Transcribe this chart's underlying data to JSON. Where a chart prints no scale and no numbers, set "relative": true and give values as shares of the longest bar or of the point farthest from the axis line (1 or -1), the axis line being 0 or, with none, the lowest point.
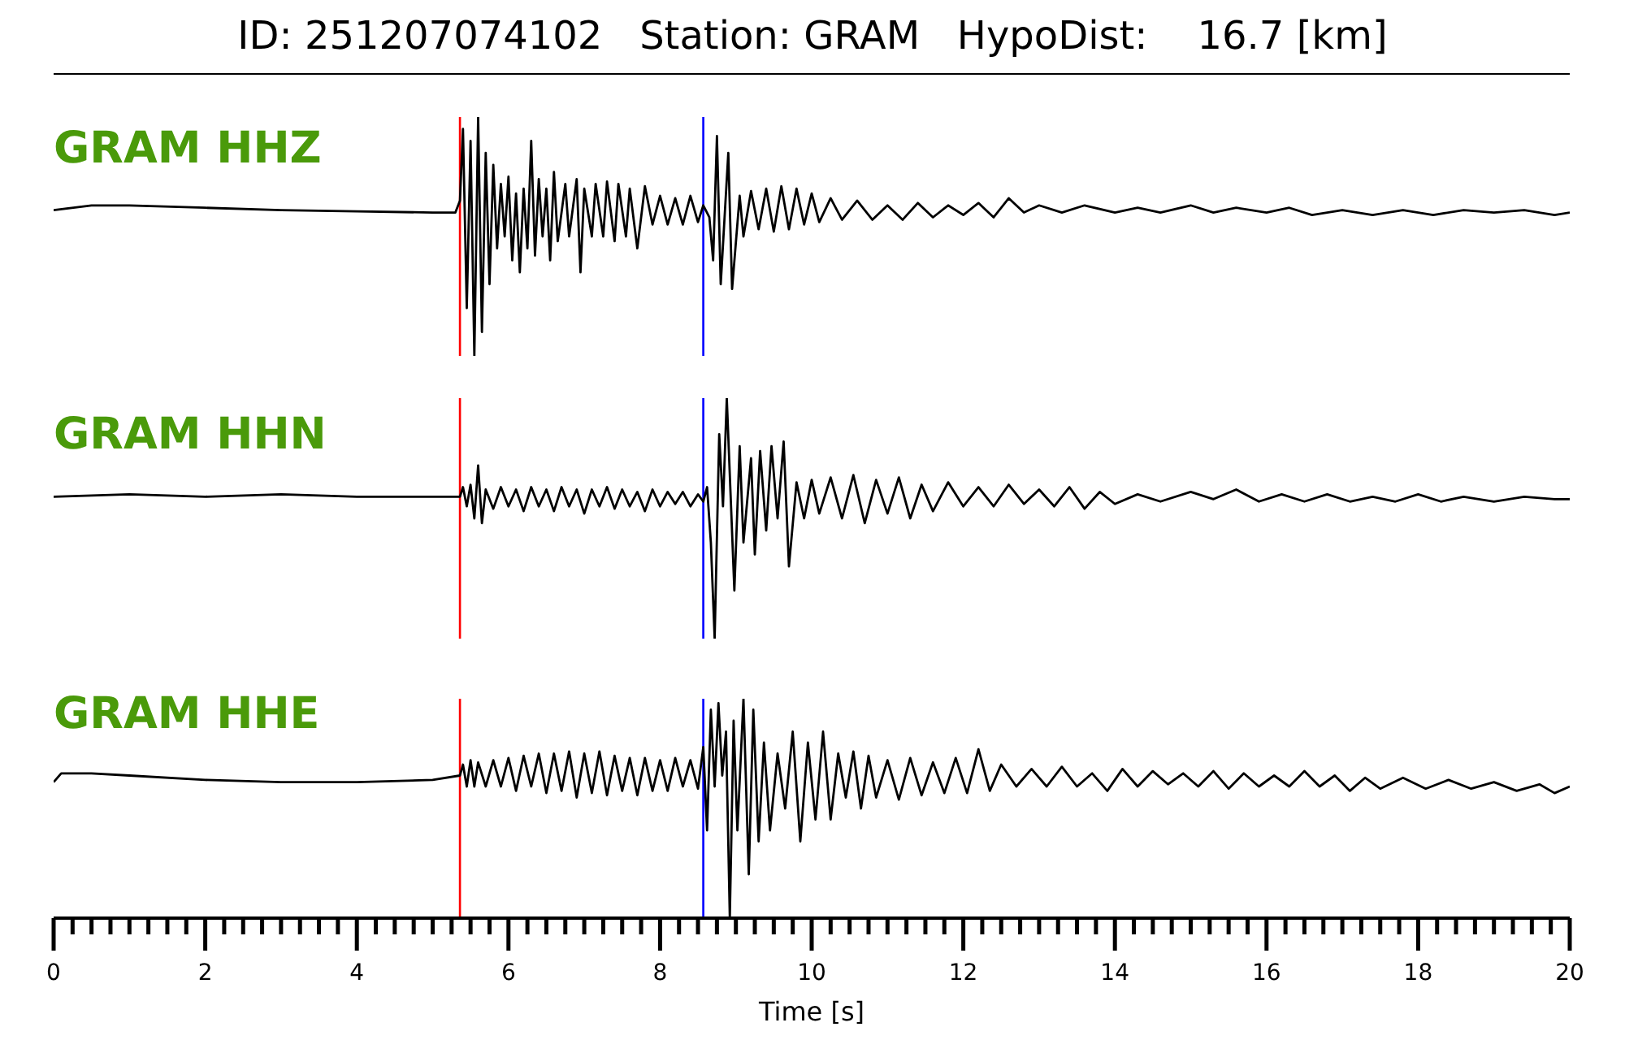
{
  "chart_data": [
    {
      "type": "line",
      "title": "ID: 251207074102   Station: GRAM   HypoDist:    16.7 [km]",
      "relative": true,
      "tick_labels": false,
      "xlim": [
        0,
        20
      ],
      "x": [
        0,
        0.5,
        1,
        2,
        3,
        4,
        5,
        5.3,
        5.36,
        5.4,
        5.45,
        5.5,
        5.55,
        5.6,
        5.65,
        5.7,
        5.75,
        5.8,
        5.85,
        5.9,
        5.95,
        6.0,
        6.05,
        6.1,
        6.15,
        6.2,
        6.25,
        6.3,
        6.35,
        6.4,
        6.45,
        6.5,
        6.55,
        6.6,
        6.65,
        6.75,
        6.8,
        6.9,
        6.95,
        7.0,
        7.1,
        7.15,
        7.25,
        7.3,
        7.4,
        7.45,
        7.55,
        7.6,
        7.7,
        7.8,
        7.9,
        8.0,
        8.1,
        8.2,
        8.3,
        8.4,
        8.5,
        8.57,
        8.65,
        8.7,
        8.75,
        8.8,
        8.9,
        8.95,
        9.05,
        9.1,
        9.2,
        9.3,
        9.4,
        9.5,
        9.6,
        9.7,
        9.8,
        9.9,
        10.0,
        10.1,
        10.25,
        10.4,
        10.6,
        10.8,
        11.0,
        11.2,
        11.4,
        11.6,
        11.8,
        12.0,
        12.2,
        12.4,
        12.6,
        12.8,
        13.0,
        13.3,
        13.6,
        14.0,
        14.3,
        14.6,
        15.0,
        15.3,
        15.6,
        16.0,
        16.3,
        16.6,
        17.0,
        17.4,
        17.8,
        18.2,
        18.6,
        19.0,
        19.4,
        19.8,
        20
      ],
      "series": [
        {
          "name": "GRAM HHZ",
          "color": "#000000",
          "values": [
            0.61,
            0.63,
            0.63,
            0.62,
            0.61,
            0.605,
            0.6,
            0.6,
            0.65,
            0.95,
            0.2,
            0.9,
            0,
            1,
            0.1,
            0.85,
            0.3,
            0.8,
            0.45,
            0.72,
            0.5,
            0.75,
            0.4,
            0.68,
            0.35,
            0.7,
            0.45,
            0.9,
            0.42,
            0.74,
            0.5,
            0.7,
            0.4,
            0.77,
            0.48,
            0.72,
            0.5,
            0.74,
            0.35,
            0.7,
            0.5,
            0.72,
            0.5,
            0.73,
            0.48,
            0.72,
            0.5,
            0.7,
            0.45,
            0.71,
            0.55,
            0.67,
            0.55,
            0.66,
            0.55,
            0.67,
            0.56,
            0.63,
            0.58,
            0.4,
            0.92,
            0.3,
            0.85,
            0.28,
            0.67,
            0.5,
            0.69,
            0.53,
            0.7,
            0.52,
            0.71,
            0.53,
            0.7,
            0.55,
            0.68,
            0.56,
            0.66,
            0.57,
            0.65,
            0.57,
            0.63,
            0.57,
            0.64,
            0.58,
            0.63,
            0.59,
            0.64,
            0.58,
            0.66,
            0.6,
            0.63,
            0.6,
            0.63,
            0.6,
            0.62,
            0.6,
            0.63,
            0.6,
            0.62,
            0.6,
            0.62,
            0.59,
            0.61,
            0.59,
            0.61,
            0.59,
            0.61,
            0.6,
            0.61,
            0.59,
            0.6
          ]
        }
      ],
      "ref_lines": [
        {
          "axis": "x",
          "value": 5.36,
          "color": "#ff0000"
        },
        {
          "axis": "x",
          "value": 8.57,
          "color": "#0000ff"
        }
      ]
    },
    {
      "type": "line",
      "relative": true,
      "tick_labels": false,
      "xlim": [
        0,
        20
      ],
      "x": [
        0,
        1,
        2,
        3,
        4,
        5,
        5.36,
        5.4,
        5.45,
        5.5,
        5.55,
        5.6,
        5.65,
        5.7,
        5.8,
        5.9,
        6.0,
        6.1,
        6.2,
        6.3,
        6.4,
        6.5,
        6.6,
        6.7,
        6.8,
        6.9,
        7.0,
        7.1,
        7.2,
        7.3,
        7.4,
        7.5,
        7.6,
        7.7,
        7.8,
        7.9,
        8.0,
        8.1,
        8.2,
        8.3,
        8.4,
        8.5,
        8.57,
        8.62,
        8.67,
        8.72,
        8.78,
        8.83,
        8.88,
        8.93,
        8.98,
        9.05,
        9.1,
        9.2,
        9.25,
        9.32,
        9.4,
        9.47,
        9.55,
        9.63,
        9.7,
        9.8,
        9.9,
        10.0,
        10.1,
        10.25,
        10.4,
        10.55,
        10.7,
        10.85,
        11.0,
        11.15,
        11.3,
        11.45,
        11.6,
        11.8,
        12.0,
        12.2,
        12.4,
        12.6,
        12.8,
        13.0,
        13.2,
        13.4,
        13.6,
        13.8,
        14.0,
        14.3,
        14.6,
        15.0,
        15.3,
        15.6,
        15.9,
        16.2,
        16.5,
        16.8,
        17.1,
        17.4,
        17.7,
        18.0,
        18.3,
        18.6,
        19.0,
        19.4,
        19.8,
        20
      ],
      "series": [
        {
          "name": "GRAM HHN",
          "color": "#000000",
          "values": [
            0.59,
            0.6,
            0.59,
            0.6,
            0.59,
            0.59,
            0.59,
            0.63,
            0.55,
            0.64,
            0.5,
            0.72,
            0.48,
            0.62,
            0.54,
            0.63,
            0.55,
            0.62,
            0.53,
            0.63,
            0.55,
            0.62,
            0.53,
            0.63,
            0.55,
            0.62,
            0.52,
            0.62,
            0.55,
            0.63,
            0.54,
            0.62,
            0.55,
            0.61,
            0.53,
            0.62,
            0.55,
            0.61,
            0.56,
            0.61,
            0.55,
            0.6,
            0.57,
            0.63,
            0.4,
            0,
            0.85,
            0.55,
            1,
            0.6,
            0.2,
            0.8,
            0.4,
            0.75,
            0.35,
            0.78,
            0.45,
            0.8,
            0.5,
            0.82,
            0.3,
            0.65,
            0.5,
            0.66,
            0.52,
            0.67,
            0.5,
            0.68,
            0.48,
            0.66,
            0.52,
            0.67,
            0.5,
            0.64,
            0.53,
            0.65,
            0.55,
            0.63,
            0.55,
            0.64,
            0.56,
            0.62,
            0.55,
            0.63,
            0.54,
            0.61,
            0.56,
            0.6,
            0.57,
            0.61,
            0.58,
            0.62,
            0.57,
            0.6,
            0.57,
            0.6,
            0.57,
            0.59,
            0.57,
            0.6,
            0.57,
            0.59,
            0.57,
            0.59,
            0.58,
            0.58
          ]
        }
      ],
      "ref_lines": [
        {
          "axis": "x",
          "value": 5.36,
          "color": "#ff0000"
        },
        {
          "axis": "x",
          "value": 8.57,
          "color": "#0000ff"
        }
      ]
    },
    {
      "type": "line",
      "relative": true,
      "tick_labels": "x",
      "xlabel": "Time [s]",
      "xlim": [
        0,
        20
      ],
      "xticks": [
        0,
        {
          "value": 0.25,
          "label": null
        },
        {
          "value": 0.5,
          "label": null
        },
        {
          "value": 0.75,
          "label": null
        },
        {
          "value": 1,
          "label": null
        },
        {
          "value": 1.25,
          "label": null
        },
        {
          "value": 1.5,
          "label": null
        },
        {
          "value": 1.75,
          "label": null
        },
        2,
        {
          "value": 2.25,
          "label": null
        },
        {
          "value": 2.5,
          "label": null
        },
        {
          "value": 2.75,
          "label": null
        },
        {
          "value": 3,
          "label": null
        },
        {
          "value": 3.25,
          "label": null
        },
        {
          "value": 3.5,
          "label": null
        },
        {
          "value": 3.75,
          "label": null
        },
        4,
        {
          "value": 4.25,
          "label": null
        },
        {
          "value": 4.5,
          "label": null
        },
        {
          "value": 4.75,
          "label": null
        },
        {
          "value": 5,
          "label": null
        },
        {
          "value": 5.25,
          "label": null
        },
        {
          "value": 5.5,
          "label": null
        },
        {
          "value": 5.75,
          "label": null
        },
        6,
        {
          "value": 6.25,
          "label": null
        },
        {
          "value": 6.5,
          "label": null
        },
        {
          "value": 6.75,
          "label": null
        },
        {
          "value": 7,
          "label": null
        },
        {
          "value": 7.25,
          "label": null
        },
        {
          "value": 7.5,
          "label": null
        },
        {
          "value": 7.75,
          "label": null
        },
        8,
        {
          "value": 8.25,
          "label": null
        },
        {
          "value": 8.5,
          "label": null
        },
        {
          "value": 8.75,
          "label": null
        },
        {
          "value": 9,
          "label": null
        },
        {
          "value": 9.25,
          "label": null
        },
        {
          "value": 9.5,
          "label": null
        },
        {
          "value": 9.75,
          "label": null
        },
        10,
        {
          "value": 10.25,
          "label": null
        },
        {
          "value": 10.5,
          "label": null
        },
        {
          "value": 10.75,
          "label": null
        },
        {
          "value": 11,
          "label": null
        },
        {
          "value": 11.25,
          "label": null
        },
        {
          "value": 11.5,
          "label": null
        },
        {
          "value": 11.75,
          "label": null
        },
        12,
        {
          "value": 12.25,
          "label": null
        },
        {
          "value": 12.5,
          "label": null
        },
        {
          "value": 12.75,
          "label": null
        },
        {
          "value": 13,
          "label": null
        },
        {
          "value": 13.25,
          "label": null
        },
        {
          "value": 13.5,
          "label": null
        },
        {
          "value": 13.75,
          "label": null
        },
        14,
        {
          "value": 14.25,
          "label": null
        },
        {
          "value": 14.5,
          "label": null
        },
        {
          "value": 14.75,
          "label": null
        },
        {
          "value": 15,
          "label": null
        },
        {
          "value": 15.25,
          "label": null
        },
        {
          "value": 15.5,
          "label": null
        },
        {
          "value": 15.75,
          "label": null
        },
        16,
        {
          "value": 16.25,
          "label": null
        },
        {
          "value": 16.5,
          "label": null
        },
        {
          "value": 16.75,
          "label": null
        },
        {
          "value": 17,
          "label": null
        },
        {
          "value": 17.25,
          "label": null
        },
        {
          "value": 17.5,
          "label": null
        },
        {
          "value": 17.75,
          "label": null
        },
        18,
        {
          "value": 18.25,
          "label": null
        },
        {
          "value": 18.5,
          "label": null
        },
        {
          "value": 18.75,
          "label": null
        },
        {
          "value": 19,
          "label": null
        },
        {
          "value": 19.25,
          "label": null
        },
        {
          "value": 19.5,
          "label": null
        },
        {
          "value": 19.75,
          "label": null
        },
        20
      ],
      "x": [
        0,
        0.1,
        0.5,
        1,
        2,
        3,
        4,
        5,
        5.36,
        5.4,
        5.45,
        5.5,
        5.55,
        5.6,
        5.7,
        5.8,
        5.9,
        6.0,
        6.1,
        6.2,
        6.3,
        6.4,
        6.5,
        6.6,
        6.7,
        6.8,
        6.9,
        7.0,
        7.1,
        7.2,
        7.3,
        7.4,
        7.5,
        7.6,
        7.7,
        7.8,
        7.9,
        8.0,
        8.1,
        8.2,
        8.3,
        8.4,
        8.5,
        8.57,
        8.62,
        8.67,
        8.72,
        8.77,
        8.82,
        8.87,
        8.92,
        8.97,
        9.02,
        9.1,
        9.17,
        9.23,
        9.3,
        9.37,
        9.45,
        9.55,
        9.65,
        9.75,
        9.85,
        9.95,
        10.05,
        10.15,
        10.25,
        10.35,
        10.45,
        10.55,
        10.65,
        10.75,
        10.85,
        11.0,
        11.15,
        11.3,
        11.45,
        11.6,
        11.75,
        11.9,
        12.05,
        12.2,
        12.35,
        12.5,
        12.7,
        12.9,
        13.1,
        13.3,
        13.5,
        13.7,
        13.9,
        14.1,
        14.3,
        14.5,
        14.7,
        14.9,
        15.1,
        15.3,
        15.5,
        15.7,
        15.9,
        16.1,
        16.3,
        16.5,
        16.7,
        16.9,
        17.1,
        17.3,
        17.5,
        17.8,
        18.1,
        18.4,
        18.7,
        19.0,
        19.3,
        19.6,
        19.8,
        20
      ],
      "series": [
        {
          "name": "GRAM HHE",
          "color": "#000000",
          "values": [
            0.62,
            0.66,
            0.66,
            0.65,
            0.63,
            0.62,
            0.62,
            0.63,
            0.65,
            0.7,
            0.6,
            0.72,
            0.6,
            0.71,
            0.6,
            0.72,
            0.6,
            0.73,
            0.58,
            0.74,
            0.6,
            0.75,
            0.57,
            0.75,
            0.58,
            0.76,
            0.55,
            0.75,
            0.57,
            0.76,
            0.56,
            0.74,
            0.58,
            0.73,
            0.56,
            0.73,
            0.58,
            0.72,
            0.58,
            0.73,
            0.6,
            0.72,
            0.59,
            0.78,
            0.4,
            0.95,
            0.6,
            0.98,
            0.65,
            0.85,
            0,
            0.9,
            0.4,
            1,
            0.2,
            0.95,
            0.35,
            0.8,
            0.4,
            0.75,
            0.5,
            0.85,
            0.35,
            0.8,
            0.45,
            0.85,
            0.45,
            0.75,
            0.55,
            0.76,
            0.5,
            0.74,
            0.55,
            0.72,
            0.54,
            0.73,
            0.56,
            0.71,
            0.57,
            0.73,
            0.57,
            0.77,
            0.58,
            0.7,
            0.6,
            0.68,
            0.6,
            0.69,
            0.6,
            0.66,
            0.58,
            0.68,
            0.6,
            0.67,
            0.61,
            0.66,
            0.6,
            0.67,
            0.59,
            0.66,
            0.6,
            0.65,
            0.6,
            0.67,
            0.6,
            0.65,
            0.58,
            0.64,
            0.59,
            0.64,
            0.59,
            0.63,
            0.59,
            0.62,
            0.58,
            0.61,
            0.57,
            0.6
          ]
        }
      ],
      "ref_lines": [
        {
          "axis": "x",
          "value": 5.36,
          "color": "#ff0000"
        },
        {
          "axis": "x",
          "value": 8.57,
          "color": "#0000ff"
        }
      ]
    }
  ]
}
